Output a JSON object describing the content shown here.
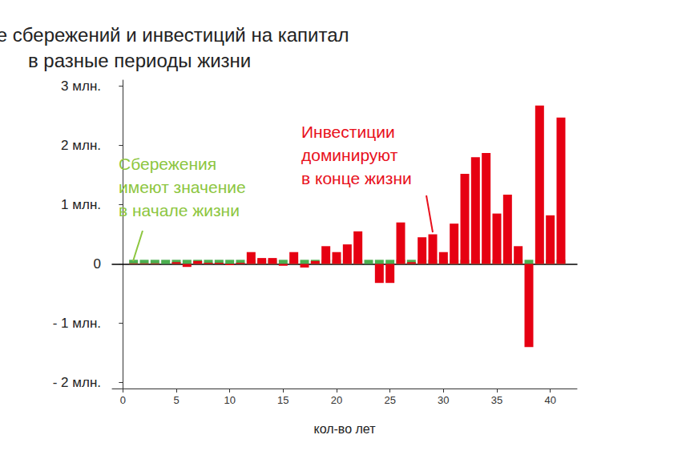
{
  "chart_data": {
    "type": "bar",
    "title": "Влияние сбережений и инвестиций на капитал\nв разные периоды жизни",
    "x_label": "кол-во лет",
    "x": [
      1,
      2,
      3,
      4,
      5,
      6,
      7,
      8,
      9,
      10,
      11,
      12,
      13,
      14,
      15,
      16,
      17,
      18,
      19,
      20,
      21,
      22,
      23,
      24,
      25,
      26,
      27,
      28,
      29,
      30,
      31,
      32,
      33,
      34,
      35,
      36,
      37,
      38,
      39,
      40,
      41
    ],
    "series": [
      {
        "color": "#4caf50",
        "values": [
          0.07,
          0.07,
          0.07,
          0.07,
          0.07,
          0.07,
          0.07,
          0.07,
          0.07,
          0.07,
          0.07,
          0.07,
          0.07,
          0.07,
          0.07,
          0.07,
          0.07,
          0.07,
          0.07,
          0.07,
          0.07,
          0.07,
          0.07,
          0.07,
          0.07,
          0.07,
          0.07,
          0.07,
          0.07,
          0.07,
          0.07,
          0.07,
          0.07,
          0.07,
          0.07,
          0.07,
          0.07,
          0.07,
          0.07,
          0.07,
          0.07
        ]
      },
      {
        "color": "#e60012",
        "values": [
          0.01,
          0.01,
          0.01,
          0.0,
          0.03,
          -0.05,
          0.05,
          0.02,
          0.02,
          -0.02,
          0.02,
          0.2,
          0.1,
          0.1,
          -0.03,
          0.2,
          -0.06,
          0.05,
          0.3,
          0.2,
          0.33,
          0.55,
          0.0,
          -0.32,
          -0.32,
          0.7,
          0.03,
          0.45,
          0.5,
          0.2,
          0.68,
          1.52,
          1.8,
          1.87,
          0.85,
          1.17,
          0.3,
          -1.4,
          2.67,
          0.82,
          2.47
        ]
      }
    ],
    "stacked": true,
    "xlim": [
      -1,
      42.5
    ],
    "xticks": [
      0,
      5,
      10,
      15,
      20,
      25,
      30,
      35,
      40
    ],
    "ylim": [
      -2.1,
      3.1
    ],
    "yticks": [
      {
        "value": -2,
        "label": "- 2 млн."
      },
      {
        "value": -1,
        "label": "- 1 млн."
      },
      0,
      {
        "value": 1,
        "label": "1 млн."
      },
      {
        "value": 2,
        "label": "2 млн."
      },
      {
        "value": 3,
        "label": "3 млн."
      }
    ],
    "grid": false,
    "annotations": [
      {
        "text": "Сбережения\nимеют значение\nв начале жизни",
        "color": "#8dc63f"
      },
      {
        "text": "Инвестиции\nдоминируют\nв конце жизни",
        "color": "#e8101c"
      }
    ]
  }
}
